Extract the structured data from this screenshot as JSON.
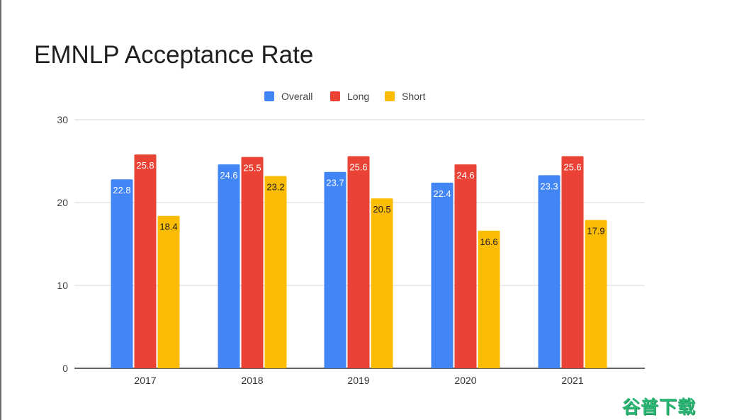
{
  "chart_data": {
    "type": "bar",
    "title": "EMNLP Acceptance Rate",
    "categories": [
      "2017",
      "2018",
      "2019",
      "2020",
      "2021"
    ],
    "series": [
      {
        "name": "Overall",
        "color": "#4285f4",
        "values": [
          22.8,
          24.6,
          23.7,
          22.4,
          23.3
        ]
      },
      {
        "name": "Long",
        "color": "#ea4335",
        "values": [
          25.8,
          25.5,
          25.6,
          24.6,
          25.6
        ]
      },
      {
        "name": "Short",
        "color": "#fbbc04",
        "values": [
          18.4,
          23.2,
          20.5,
          16.6,
          17.9
        ]
      }
    ],
    "ylim": [
      0,
      30
    ],
    "yticks": [
      0,
      10,
      20,
      30
    ],
    "grid": true,
    "legend": "top-center",
    "xlabel": "",
    "ylabel": ""
  },
  "watermark": {
    "text": "谷普下载"
  }
}
